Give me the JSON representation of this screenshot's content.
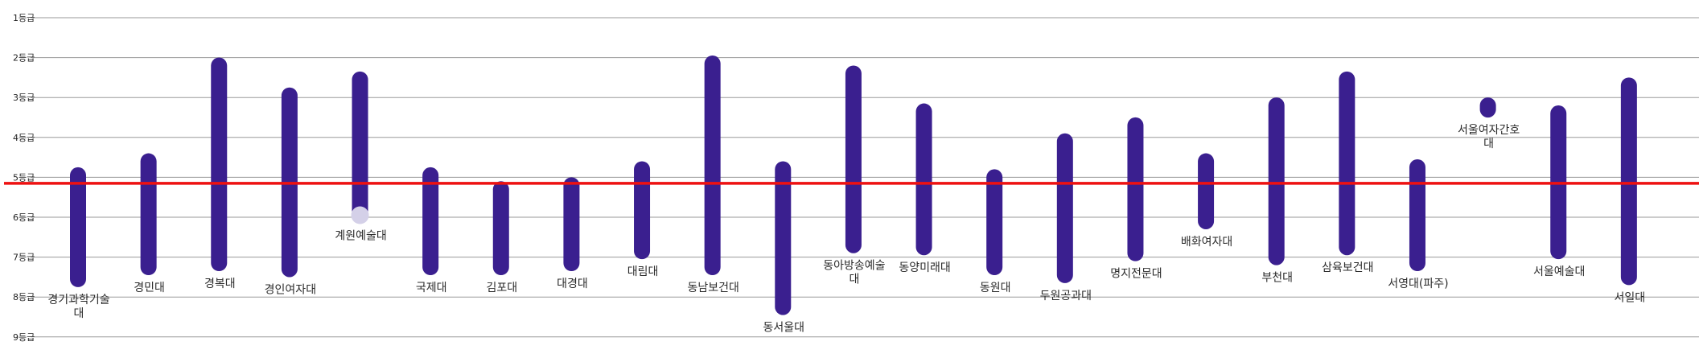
{
  "chart_data": {
    "type": "range-bar",
    "y_ticks": [
      "1등급",
      "2등급",
      "3등급",
      "4등급",
      "5등급",
      "6등급",
      "7등급",
      "8등급",
      "9등급"
    ],
    "ylim": [
      1,
      9
    ],
    "y_inverted": true,
    "grid": true,
    "reference_line": {
      "value": 5.15,
      "color": "#ee1111"
    },
    "bar_color": "#3a1f8f",
    "marker_color": "#d4d0e8",
    "categories": [
      {
        "name": "경기과학기술대",
        "lines": [
          "경기과학기술",
          "대"
        ],
        "min": 4.95,
        "max": 7.55
      },
      {
        "name": "경민대",
        "lines": [
          "경민대"
        ],
        "min": 4.6,
        "max": 7.25
      },
      {
        "name": "경복대",
        "lines": [
          "경복대"
        ],
        "min": 2.2,
        "max": 7.15
      },
      {
        "name": "경인여자대",
        "lines": [
          "경인여자대"
        ],
        "min": 2.95,
        "max": 7.3
      },
      {
        "name": "계원예술대",
        "lines": [
          "계원예술대"
        ],
        "min": 2.55,
        "max": 5.95,
        "marker": 5.95
      },
      {
        "name": "국제대",
        "lines": [
          "국제대"
        ],
        "min": 4.95,
        "max": 7.25
      },
      {
        "name": "김포대",
        "lines": [
          "김포대"
        ],
        "min": 5.3,
        "max": 7.25
      },
      {
        "name": "대경대",
        "lines": [
          "대경대"
        ],
        "min": 5.2,
        "max": 7.15
      },
      {
        "name": "대림대",
        "lines": [
          "대림대"
        ],
        "min": 4.8,
        "max": 6.85
      },
      {
        "name": "동남보건대",
        "lines": [
          "동남보건대"
        ],
        "min": 2.15,
        "max": 7.25
      },
      {
        "name": "동서울대",
        "lines": [
          "동서울대"
        ],
        "min": 4.8,
        "max": 8.25
      },
      {
        "name": "동아방송예술대",
        "lines": [
          "동아방송예술",
          "대"
        ],
        "min": 2.4,
        "max": 6.7
      },
      {
        "name": "동양미래대",
        "lines": [
          "동양미래대"
        ],
        "min": 3.35,
        "max": 6.75
      },
      {
        "name": "동원대",
        "lines": [
          "동원대"
        ],
        "min": 5.0,
        "max": 7.25
      },
      {
        "name": "두원공과대",
        "lines": [
          "두원공과대"
        ],
        "min": 4.1,
        "max": 7.45
      },
      {
        "name": "명지전문대",
        "lines": [
          "명지전문대"
        ],
        "min": 3.7,
        "max": 6.9
      },
      {
        "name": "배화여자대",
        "lines": [
          "배화여자대"
        ],
        "min": 4.6,
        "max": 6.1
      },
      {
        "name": "부천대",
        "lines": [
          "부천대"
        ],
        "min": 3.2,
        "max": 7.0
      },
      {
        "name": "삼육보건대",
        "lines": [
          "삼육보건대"
        ],
        "min": 2.55,
        "max": 6.75
      },
      {
        "name": "서영대(파주)",
        "lines": [
          "서영대(파주)"
        ],
        "min": 4.75,
        "max": 7.15
      },
      {
        "name": "서울여자간호대",
        "lines": [
          "서울여자간호",
          "대"
        ],
        "min": 3.2,
        "max": 3.3
      },
      {
        "name": "서울예술대",
        "lines": [
          "서울예술대"
        ],
        "min": 3.4,
        "max": 6.85
      },
      {
        "name": "서일대",
        "lines": [
          "서일대"
        ],
        "min": 2.7,
        "max": 7.5
      }
    ]
  }
}
